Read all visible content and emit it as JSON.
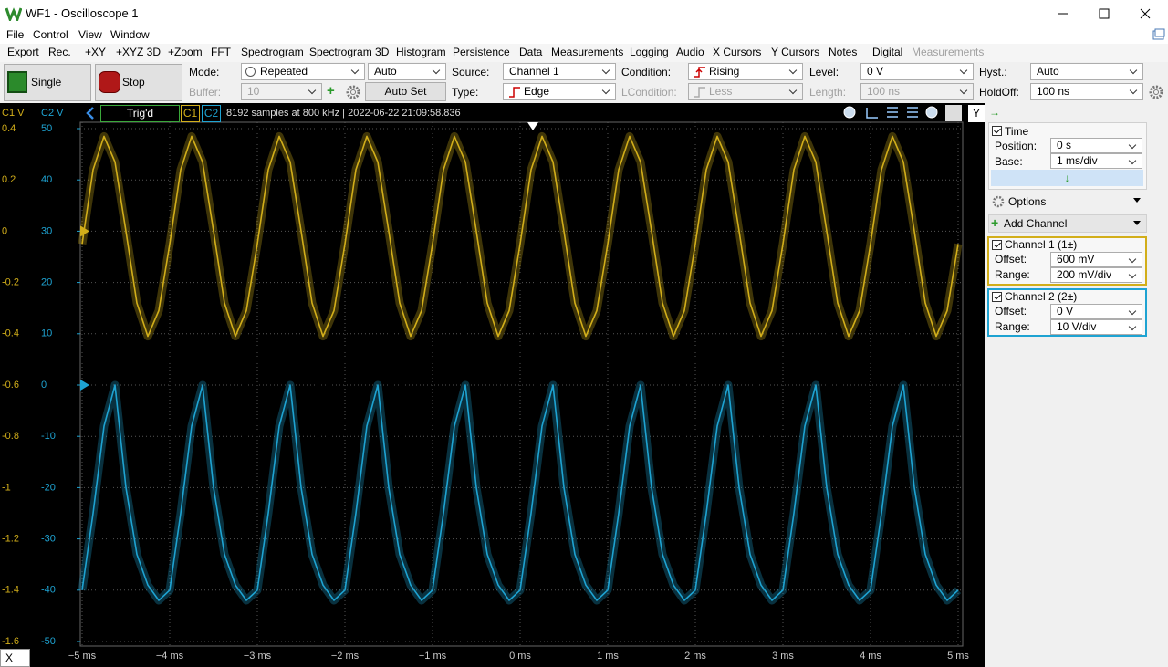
{
  "ui": {
    "window_title": "WF1 - Oscilloscope 1",
    "menu": [
      "File",
      "Control",
      "View",
      "Window"
    ],
    "toolbar": [
      "Export",
      "Rec.",
      "+XY",
      "+XYZ 3D",
      "+Zoom",
      "FFT",
      "Spectrogram",
      "Spectrogram 3D",
      "Histogram",
      "Persistence",
      "Data",
      "Measurements",
      "Logging",
      "Audio",
      "X Cursors",
      "Y Cursors",
      "Notes",
      "Digital",
      "Measurements"
    ],
    "buttons": {
      "single": "Single",
      "stop": "Stop",
      "auto_set": "Auto Set"
    },
    "trigger": {
      "mode_label": "Mode:",
      "mode": "Repeated",
      "mode_auto": "Auto",
      "buffer_label": "Buffer:",
      "buffer": 10,
      "source_label": "Source:",
      "source": "Channel 1",
      "type_label": "Type:",
      "type": "Edge",
      "condition_label": "Condition:",
      "condition": "Rising",
      "lcondition_label": "LCondition:",
      "lcondition": "Less",
      "level_label": "Level:",
      "level": "0 V",
      "length_label": "Length:",
      "length": "100 ns",
      "hyst_label": "Hyst.:",
      "hyst": "Auto",
      "holdoff_label": "HoldOff:",
      "holdoff": "100 ns"
    },
    "status": {
      "state": "Trig'd",
      "info": "8192 samples at 800 kHz | 2022-06-22 21:09:58.836"
    },
    "panel": {
      "y_button": "Y",
      "time": {
        "title": "Time",
        "position_label": "Position:",
        "position": "0 s",
        "base_label": "Base:",
        "base": "1 ms/div"
      },
      "options": "Options",
      "add_channel": "Add Channel",
      "channels": [
        {
          "title": "Channel 1 (1±)",
          "offset_label": "Offset:",
          "offset": "600 mV",
          "range_label": "Range:",
          "range": "200 mV/div"
        },
        {
          "title": "Channel 2 (2±)",
          "offset_label": "Offset:",
          "offset": "0 V",
          "range_label": "Range:",
          "range": "10 V/div"
        }
      ]
    },
    "x_button": "X"
  },
  "chart_data": {
    "type": "line",
    "ylabel": "C1 V",
    "y2label": "C2 V",
    "grid": true,
    "xlim": [
      -5,
      5
    ],
    "xticks": [
      {
        "value": -5,
        "label": "−5 ms"
      },
      {
        "value": -4,
        "label": "−4 ms"
      },
      {
        "value": -3,
        "label": "−3 ms"
      },
      {
        "value": -2,
        "label": "−2 ms"
      },
      {
        "value": -1,
        "label": "−1 ms"
      },
      {
        "value": 0,
        "label": "0 ms"
      },
      {
        "value": 1,
        "label": "1 ms"
      },
      {
        "value": 2,
        "label": "2 ms"
      },
      {
        "value": 3,
        "label": "3 ms"
      },
      {
        "value": 4,
        "label": "4 ms"
      },
      {
        "value": 5,
        "label": "5 ms"
      }
    ],
    "ylim": [
      -1.6,
      0.4
    ],
    "yticks": [
      0.4,
      0.2,
      0,
      -0.2,
      -0.4,
      -0.6,
      -0.8,
      -1,
      -1.2,
      -1.4,
      -1.6
    ],
    "y2lim": [
      -50,
      50
    ],
    "y2ticks": [
      50,
      40,
      30,
      20,
      10,
      0,
      -10,
      -20,
      -30,
      -40,
      -50
    ],
    "x": [
      -5,
      -4.875,
      -4.75,
      -4.625,
      -4.5,
      -4.375,
      -4.25,
      -4.125,
      -4,
      -3.875,
      -3.75,
      -3.625,
      -3.5,
      -3.375,
      -3.25,
      -3.125,
      -3,
      -2.875,
      -2.75,
      -2.625,
      -2.5,
      -2.375,
      -2.25,
      -2.125,
      -2,
      -1.875,
      -1.75,
      -1.625,
      -1.5,
      -1.375,
      -1.25,
      -1.125,
      -1,
      -0.875,
      -0.75,
      -0.625,
      -0.5,
      -0.375,
      -0.25,
      -0.125,
      0,
      0.125,
      0.25,
      0.375,
      0.5,
      0.625,
      0.75,
      0.875,
      1,
      1.125,
      1.25,
      1.375,
      1.5,
      1.625,
      1.75,
      1.875,
      2,
      2.125,
      2.25,
      2.375,
      2.5,
      2.625,
      2.75,
      2.875,
      3,
      3.125,
      3.25,
      3.375,
      3.5,
      3.625,
      3.75,
      3.875,
      4,
      4.125,
      4.25,
      4.375,
      4.5,
      4.625,
      4.75,
      4.875,
      5
    ],
    "series": [
      {
        "name": "C1",
        "color": "#d2ae1a",
        "values": [
          -0.05,
          0.24,
          0.37,
          0.27,
          0,
          -0.28,
          -0.41,
          -0.31,
          -0.05,
          0.24,
          0.37,
          0.27,
          0,
          -0.28,
          -0.41,
          -0.31,
          -0.05,
          0.24,
          0.37,
          0.27,
          0,
          -0.28,
          -0.41,
          -0.31,
          -0.05,
          0.24,
          0.37,
          0.27,
          0,
          -0.28,
          -0.41,
          -0.31,
          -0.05,
          0.24,
          0.37,
          0.27,
          0,
          -0.28,
          -0.41,
          -0.31,
          -0.05,
          0.24,
          0.37,
          0.27,
          0,
          -0.28,
          -0.41,
          -0.31,
          -0.05,
          0.24,
          0.37,
          0.27,
          0,
          -0.28,
          -0.41,
          -0.31,
          -0.05,
          0.24,
          0.37,
          0.27,
          0,
          -0.28,
          -0.41,
          -0.31,
          -0.05,
          0.24,
          0.37,
          0.27,
          0,
          -0.28,
          -0.41,
          -0.31,
          -0.05,
          0.24,
          0.37,
          0.27,
          0,
          -0.28,
          -0.41,
          -0.31,
          -0.05
        ]
      },
      {
        "name": "C2",
        "color": "#1ea3d2",
        "axis": "y2",
        "values": [
          -40,
          -25,
          -8,
          0,
          -20,
          -33,
          -39,
          -42,
          -40,
          -25,
          -8,
          0,
          -20,
          -33,
          -39,
          -42,
          -40,
          -25,
          -8,
          0,
          -20,
          -33,
          -39,
          -42,
          -40,
          -25,
          -8,
          0,
          -20,
          -33,
          -39,
          -42,
          -40,
          -25,
          -8,
          0,
          -20,
          -33,
          -39,
          -42,
          -40,
          -25,
          -8,
          0,
          -20,
          -33,
          -39,
          -42,
          -40,
          -25,
          -8,
          0,
          -20,
          -33,
          -39,
          -42,
          -40,
          -25,
          -8,
          0,
          -20,
          -33,
          -39,
          -42,
          -40,
          -25,
          -8,
          0,
          -20,
          -33,
          -39,
          -42,
          -40,
          -25,
          -8,
          0,
          -20,
          -33,
          -39,
          -42,
          -40
        ]
      }
    ]
  }
}
